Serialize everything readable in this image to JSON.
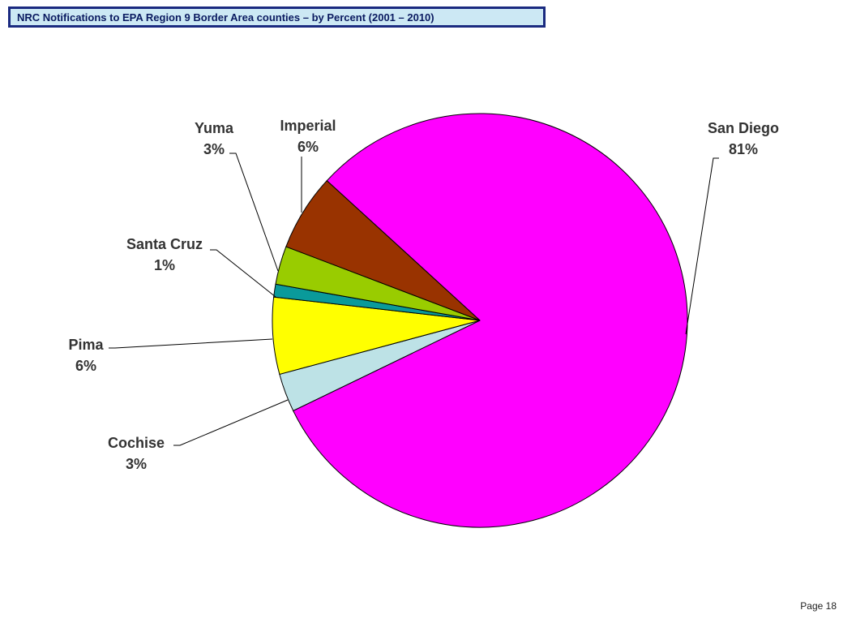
{
  "header": {
    "title": "NRC Notifications to EPA Region 9  Border Area  counties – by Percent (2001 – 2010)"
  },
  "footer": {
    "page": "Page 18"
  },
  "chart_data": {
    "type": "pie",
    "title": "NRC Notifications to EPA Region 9  Border Area  counties – by Percent (2001 – 2010)",
    "slices": [
      {
        "name": "San Diego",
        "value": 81,
        "label": "81%",
        "color": "#ff00ff"
      },
      {
        "name": "Cochise",
        "value": 3,
        "label": "3%",
        "color": "#bde2e6"
      },
      {
        "name": "Pima",
        "value": 6,
        "label": "6%",
        "color": "#ffff00"
      },
      {
        "name": "Santa Cruz",
        "value": 1,
        "label": "1%",
        "color": "#0a9a9a"
      },
      {
        "name": "Yuma",
        "value": 3,
        "label": "3%",
        "color": "#99cc00"
      },
      {
        "name": "Imperial",
        "value": 6,
        "label": "6%",
        "color": "#993300"
      }
    ]
  }
}
